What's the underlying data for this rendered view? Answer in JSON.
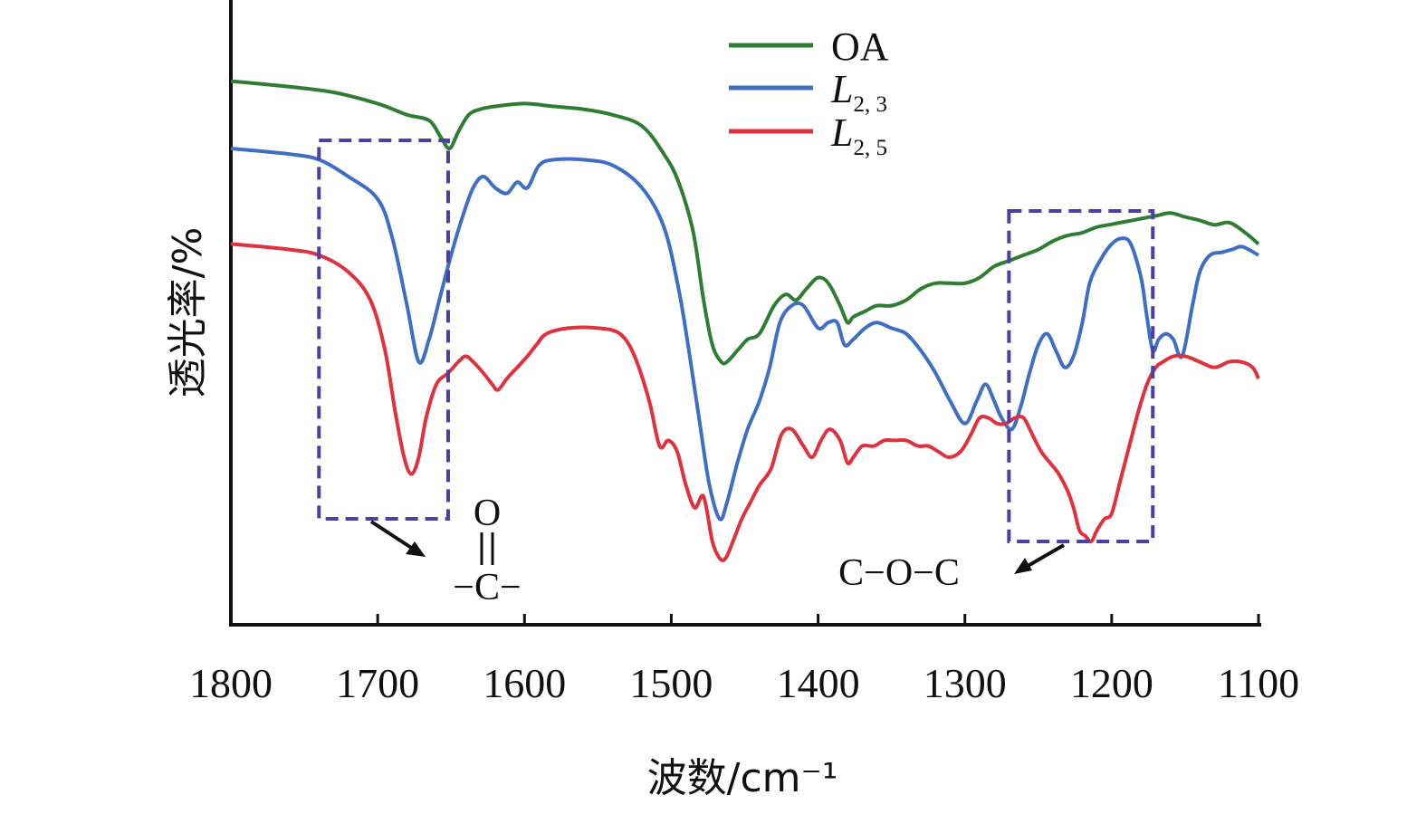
{
  "chart_data": {
    "type": "line",
    "xlabel": "波数/cm⁻¹",
    "ylabel": "透光率/%",
    "xlim": [
      1800,
      1100
    ],
    "x_reversed": true,
    "xticks": [
      1800,
      1700,
      1600,
      1500,
      1400,
      1300,
      1200,
      1100
    ],
    "y_ticks_shown": false,
    "legend_position": "top-center",
    "series": [
      {
        "name": "OA",
        "legend_main": "OA",
        "legend_sub": "",
        "color": "#2e7d32",
        "x": [
          1800,
          1760,
          1730,
          1700,
          1680,
          1665,
          1657,
          1651,
          1645,
          1638,
          1630,
          1620,
          1600,
          1580,
          1560,
          1540,
          1520,
          1505,
          1495,
          1485,
          1478,
          1472,
          1466,
          1462,
          1455,
          1448,
          1440,
          1430,
          1422,
          1415,
          1408,
          1400,
          1393,
          1385,
          1380,
          1376,
          1368,
          1360,
          1350,
          1340,
          1330,
          1320,
          1310,
          1300,
          1290,
          1280,
          1270,
          1260,
          1250,
          1240,
          1230,
          1220,
          1210,
          1200,
          1190,
          1180,
          1170,
          1160,
          1150,
          1140,
          1130,
          1120,
          1110,
          1100
        ],
        "y": [
          0.92,
          0.91,
          0.9,
          0.88,
          0.86,
          0.85,
          0.82,
          0.8,
          0.83,
          0.86,
          0.87,
          0.875,
          0.88,
          0.875,
          0.87,
          0.86,
          0.84,
          0.79,
          0.74,
          0.65,
          0.53,
          0.45,
          0.42,
          0.42,
          0.44,
          0.46,
          0.47,
          0.52,
          0.54,
          0.53,
          0.55,
          0.57,
          0.56,
          0.52,
          0.49,
          0.5,
          0.51,
          0.52,
          0.52,
          0.53,
          0.55,
          0.56,
          0.56,
          0.56,
          0.57,
          0.59,
          0.6,
          0.61,
          0.62,
          0.635,
          0.645,
          0.65,
          0.66,
          0.665,
          0.67,
          0.675,
          0.68,
          0.685,
          0.678,
          0.672,
          0.664,
          0.668,
          0.652,
          0.63
        ]
      },
      {
        "name": "L2,3",
        "legend_main": "L",
        "legend_sub": "2, 3",
        "color": "#3f6fc4",
        "x": [
          1800,
          1760,
          1740,
          1720,
          1700,
          1690,
          1680,
          1672,
          1665,
          1658,
          1650,
          1642,
          1635,
          1628,
          1620,
          1612,
          1605,
          1598,
          1590,
          1580,
          1560,
          1540,
          1520,
          1505,
          1495,
          1488,
          1480,
          1474,
          1467,
          1462,
          1455,
          1448,
          1440,
          1433,
          1426,
          1418,
          1410,
          1400,
          1393,
          1387,
          1382,
          1376,
          1368,
          1360,
          1350,
          1340,
          1330,
          1320,
          1310,
          1300,
          1292,
          1286,
          1280,
          1275,
          1268,
          1262,
          1256,
          1250,
          1244,
          1238,
          1232,
          1226,
          1220,
          1215,
          1208,
          1200,
          1193,
          1187,
          1180,
          1176,
          1172,
          1168,
          1163,
          1158,
          1152,
          1145,
          1140,
          1133,
          1125,
          1118,
          1111,
          1100
        ],
        "y": [
          0.8,
          0.79,
          0.78,
          0.75,
          0.71,
          0.64,
          0.52,
          0.42,
          0.46,
          0.53,
          0.61,
          0.68,
          0.73,
          0.75,
          0.73,
          0.72,
          0.74,
          0.73,
          0.77,
          0.78,
          0.78,
          0.77,
          0.73,
          0.66,
          0.55,
          0.44,
          0.3,
          0.2,
          0.14,
          0.17,
          0.24,
          0.3,
          0.35,
          0.41,
          0.49,
          0.52,
          0.52,
          0.48,
          0.49,
          0.49,
          0.45,
          0.46,
          0.48,
          0.49,
          0.48,
          0.47,
          0.44,
          0.4,
          0.35,
          0.31,
          0.35,
          0.38,
          0.35,
          0.32,
          0.3,
          0.34,
          0.4,
          0.45,
          0.47,
          0.44,
          0.41,
          0.43,
          0.49,
          0.56,
          0.6,
          0.63,
          0.64,
          0.63,
          0.57,
          0.5,
          0.44,
          0.46,
          0.47,
          0.46,
          0.43,
          0.52,
          0.58,
          0.61,
          0.615,
          0.62,
          0.625,
          0.61
        ]
      },
      {
        "name": "L2,5",
        "legend_main": "L",
        "legend_sub": "2, 5",
        "color": "#e0313f",
        "x": [
          1800,
          1760,
          1740,
          1720,
          1705,
          1695,
          1688,
          1682,
          1677,
          1672,
          1667,
          1660,
          1652,
          1645,
          1640,
          1635,
          1628,
          1622,
          1618,
          1612,
          1605,
          1598,
          1592,
          1585,
          1570,
          1550,
          1535,
          1525,
          1515,
          1508,
          1502,
          1496,
          1490,
          1484,
          1478,
          1472,
          1467,
          1463,
          1458,
          1452,
          1446,
          1440,
          1432,
          1425,
          1418,
          1410,
          1404,
          1398,
          1392,
          1385,
          1380,
          1376,
          1370,
          1362,
          1355,
          1348,
          1340,
          1332,
          1325,
          1318,
          1311,
          1303,
          1296,
          1290,
          1284,
          1278,
          1272,
          1266,
          1260,
          1254,
          1248,
          1242,
          1236,
          1230,
          1226,
          1222,
          1218,
          1214,
          1210,
          1205,
          1200,
          1194,
          1188,
          1182,
          1176,
          1170,
          1165,
          1158,
          1150,
          1140,
          1130,
          1120,
          1112,
          1104,
          1100
        ],
        "y": [
          0.63,
          0.62,
          0.61,
          0.58,
          0.53,
          0.44,
          0.33,
          0.25,
          0.22,
          0.25,
          0.32,
          0.38,
          0.4,
          0.42,
          0.43,
          0.42,
          0.4,
          0.38,
          0.37,
          0.39,
          0.41,
          0.43,
          0.45,
          0.47,
          0.48,
          0.48,
          0.47,
          0.43,
          0.35,
          0.27,
          0.28,
          0.26,
          0.2,
          0.16,
          0.18,
          0.1,
          0.07,
          0.07,
          0.1,
          0.14,
          0.17,
          0.2,
          0.23,
          0.29,
          0.3,
          0.27,
          0.25,
          0.28,
          0.3,
          0.28,
          0.24,
          0.25,
          0.27,
          0.27,
          0.28,
          0.28,
          0.28,
          0.27,
          0.27,
          0.26,
          0.25,
          0.26,
          0.29,
          0.32,
          0.32,
          0.31,
          0.31,
          0.32,
          0.32,
          0.29,
          0.26,
          0.24,
          0.22,
          0.19,
          0.16,
          0.12,
          0.11,
          0.1,
          0.12,
          0.14,
          0.15,
          0.21,
          0.27,
          0.33,
          0.38,
          0.41,
          0.42,
          0.43,
          0.43,
          0.42,
          0.41,
          0.42,
          0.42,
          0.41,
          0.39
        ]
      }
    ],
    "annotations": [
      {
        "label_top": "O",
        "label_main": "−C−",
        "meaning": "carbonyl",
        "box_x": [
          1740,
          1652
        ]
      },
      {
        "label_main": "C−O−C",
        "box_x": [
          1270,
          1172
        ]
      }
    ]
  }
}
